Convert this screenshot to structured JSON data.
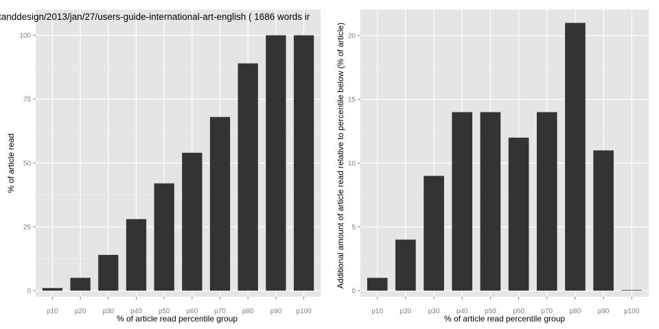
{
  "chart_data": [
    {
      "type": "bar",
      "title": "tanddesign/2013/jan/27/users-guide-international-art-english ( 1686 words ir",
      "xlabel": "% of article read percentile group",
      "ylabel": "% of article read",
      "categories": [
        "p10",
        "p20",
        "p30",
        "p40",
        "p50",
        "p60",
        "p70",
        "p80",
        "p90",
        "p100"
      ],
      "values": [
        1,
        5,
        14,
        28,
        42,
        54,
        68,
        89,
        100,
        100
      ],
      "ylim": [
        0,
        100
      ],
      "yticks": [
        0,
        25,
        50,
        75,
        100
      ],
      "grid": true,
      "panel_bg": "#e5e5e5",
      "bar_color": "#333333"
    },
    {
      "type": "bar",
      "title": "",
      "xlabel": "% of article read percentile group",
      "ylabel": "Additional amount of article read relative to percentile below (% of article)",
      "categories": [
        "p10",
        "p20",
        "p30",
        "p40",
        "p50",
        "p60",
        "p70",
        "p80",
        "p90",
        "p100"
      ],
      "values": [
        1,
        4,
        9,
        14,
        14,
        12,
        14,
        21,
        11,
        0
      ],
      "ylim": [
        0,
        21.5
      ],
      "yticks": [
        0,
        5,
        10,
        15,
        20
      ],
      "grid": true,
      "panel_bg": "#e5e5e5",
      "bar_color": "#333333"
    }
  ]
}
